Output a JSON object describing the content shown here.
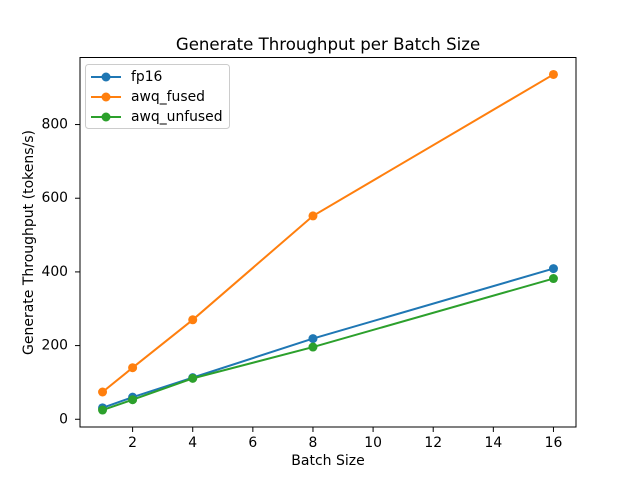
{
  "chart_data": {
    "type": "line",
    "title": "Generate Throughput per Batch Size",
    "xlabel": "Batch Size",
    "ylabel": "Generate Throughput (tokens/s)",
    "x": [
      1,
      2,
      4,
      8,
      16
    ],
    "series": [
      {
        "name": "fp16",
        "color": "#1f77b4",
        "values": [
          31,
          60,
          113,
          219,
          409
        ]
      },
      {
        "name": "awq_fused",
        "color": "#ff7f0e",
        "values": [
          74,
          140,
          270,
          552,
          936
        ]
      },
      {
        "name": "awq_unfused",
        "color": "#2ca02c",
        "values": [
          25,
          53,
          111,
          196,
          382
        ]
      }
    ],
    "xticks": [
      2,
      4,
      6,
      8,
      10,
      12,
      14,
      16
    ],
    "yticks": [
      0,
      200,
      400,
      600,
      800
    ],
    "xlim": [
      0.25,
      16.75
    ],
    "ylim": [
      -21,
      982
    ],
    "grid": false,
    "legend_position": "upper left",
    "marker": "circle"
  },
  "colors": {
    "background": "#ffffff",
    "axes": "#000000",
    "legend_border": "#cccccc",
    "legend_fill": "#ffffff"
  }
}
